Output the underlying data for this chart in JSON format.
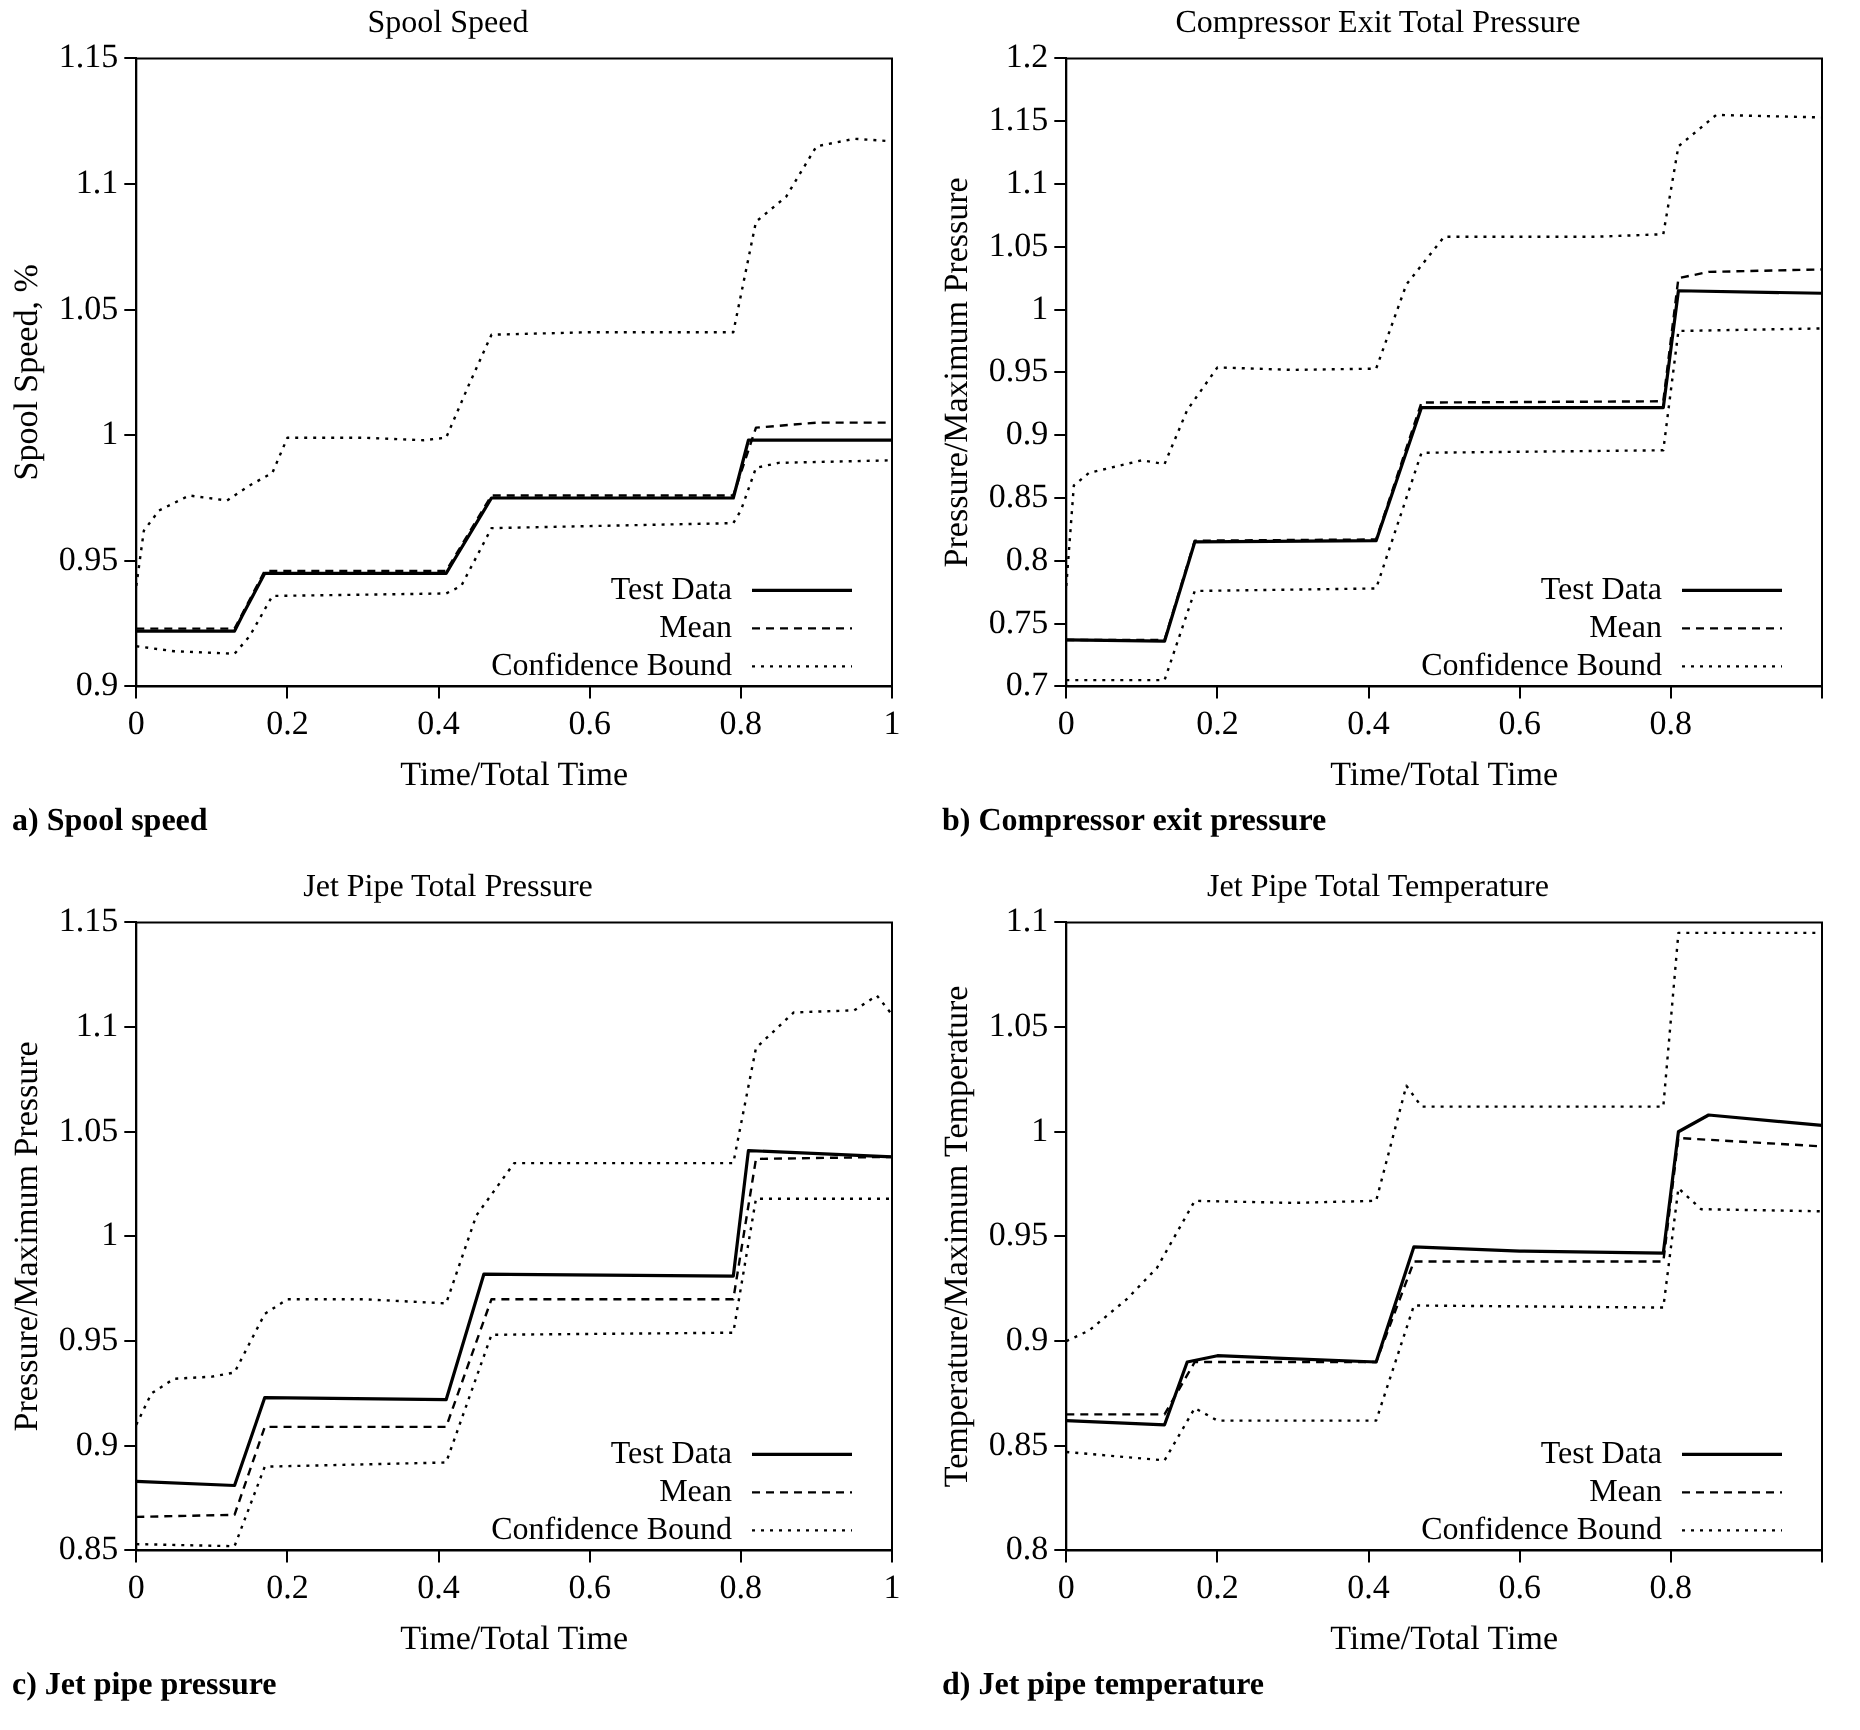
{
  "chart_data": [
    {
      "type": "line",
      "title": "Spool Speed",
      "xlabel": "Time/Total Time",
      "ylabel": "Spool Speed, %",
      "xlim": [
        0,
        1
      ],
      "xticks": [
        0,
        0.2,
        0.4,
        0.6,
        0.8,
        1
      ],
      "ylim": [
        0.9,
        1.15
      ],
      "yticks": [
        0.9,
        0.95,
        1,
        1.05,
        1.1,
        1.15
      ],
      "legend": "bottom right",
      "annotations": [
        "a) Spool speed"
      ],
      "series": [
        {
          "name": "Test Data",
          "color": "#000000",
          "line_style": "solid",
          "x": [
            0,
            0.13,
            0.14,
            0.17,
            0.41,
            0.42,
            0.47,
            0.79,
            0.81,
            1
          ],
          "values": [
            0.922,
            0.922,
            0.928,
            0.945,
            0.945,
            0.95,
            0.975,
            0.975,
            0.998,
            0.998
          ]
        },
        {
          "name": "Mean",
          "color": "#000000",
          "line_style": "dashed",
          "x": [
            0,
            0.13,
            0.17,
            0.41,
            0.47,
            0.79,
            0.82,
            0.9,
            1
          ],
          "values": [
            0.923,
            0.923,
            0.946,
            0.946,
            0.976,
            0.976,
            1.003,
            1.005,
            1.005
          ]
        },
        {
          "name": "Confidence Bound",
          "color": "#000000",
          "line_style": "dotted",
          "x": [
            0,
            0.01,
            0.03,
            0.07,
            0.12,
            0.15,
            0.18,
            0.2,
            0.3,
            0.38,
            0.41,
            0.44,
            0.47,
            0.6,
            0.79,
            0.82,
            0.86,
            0.9,
            0.95,
            1
          ],
          "values": [
            0.94,
            0.962,
            0.97,
            0.976,
            0.974,
            0.98,
            0.985,
            0.999,
            0.999,
            0.998,
            0.999,
            1.02,
            1.04,
            1.041,
            1.041,
            1.085,
            1.095,
            1.115,
            1.118,
            1.117
          ]
        },
        {
          "color": "#000000",
          "line_style": "dotted",
          "x": [
            0,
            0.05,
            0.13,
            0.15,
            0.18,
            0.41,
            0.43,
            0.47,
            0.79,
            0.8,
            0.82,
            0.85,
            1
          ],
          "values": [
            0.916,
            0.914,
            0.913,
            0.92,
            0.936,
            0.937,
            0.94,
            0.963,
            0.965,
            0.97,
            0.987,
            0.989,
            0.99
          ]
        }
      ]
    },
    {
      "type": "line",
      "title": "Compressor Exit Total Pressure",
      "xlabel": "Time/Total Time",
      "ylabel": "Pressure/Maximum Pressure",
      "xlim": [
        0,
        1
      ],
      "xticks": [
        0,
        0.2,
        0.4,
        0.6,
        0.8,
        {
          "value": 1,
          "label": null
        }
      ],
      "ylim": [
        0.7,
        1.2
      ],
      "yticks": [
        0.7,
        0.75,
        0.8,
        0.85,
        0.9,
        0.95,
        1,
        1.05,
        1.1,
        1.15,
        1.2
      ],
      "legend": "bottom right",
      "annotations": [
        "b) Compressor exit pressure"
      ],
      "series": [
        {
          "name": "Test Data",
          "color": "#000000",
          "line_style": "solid",
          "x": [
            0,
            0.13,
            0.17,
            0.41,
            0.47,
            0.79,
            0.81,
            1
          ],
          "values": [
            0.737,
            0.736,
            0.815,
            0.816,
            0.922,
            0.922,
            1.015,
            1.013
          ]
        },
        {
          "name": "Mean",
          "color": "#000000",
          "line_style": "dashed",
          "x": [
            0,
            0.13,
            0.17,
            0.41,
            0.47,
            0.79,
            0.81,
            0.85,
            1
          ],
          "values": [
            0.737,
            0.737,
            0.816,
            0.817,
            0.926,
            0.927,
            1.025,
            1.03,
            1.032
          ]
        },
        {
          "name": "Confidence Bound",
          "color": "#000000",
          "line_style": "dotted",
          "x": [
            0,
            0.01,
            0.03,
            0.1,
            0.13,
            0.16,
            0.2,
            0.3,
            0.41,
            0.45,
            0.5,
            0.7,
            0.79,
            0.81,
            0.86,
            1
          ],
          "values": [
            0.78,
            0.86,
            0.87,
            0.88,
            0.877,
            0.92,
            0.954,
            0.952,
            0.953,
            1.02,
            1.058,
            1.058,
            1.06,
            1.13,
            1.155,
            1.153
          ]
        },
        {
          "color": "#000000",
          "line_style": "dotted",
          "x": [
            0,
            0.13,
            0.17,
            0.41,
            0.47,
            0.79,
            0.81,
            1
          ],
          "values": [
            0.705,
            0.705,
            0.776,
            0.778,
            0.886,
            0.888,
            0.983,
            0.985
          ]
        }
      ]
    },
    {
      "type": "line",
      "title": "Jet Pipe Total Pressure",
      "xlabel": "Time/Total Time",
      "ylabel": "Pressure/Maximum Pressure",
      "xlim": [
        0,
        1
      ],
      "xticks": [
        0,
        0.2,
        0.4,
        0.6,
        0.8,
        1
      ],
      "ylim": [
        0.85,
        1.15
      ],
      "yticks": [
        0.85,
        0.9,
        0.95,
        1,
        1.05,
        1.1,
        1.15
      ],
      "legend": "bottom right",
      "annotations": [
        "c) Jet pipe pressure"
      ],
      "series": [
        {
          "name": "Test Data",
          "color": "#000000",
          "line_style": "solid",
          "x": [
            0,
            0.13,
            0.17,
            0.41,
            0.46,
            0.79,
            0.81,
            1
          ],
          "values": [
            0.883,
            0.881,
            0.923,
            0.922,
            0.982,
            0.981,
            1.041,
            1.038
          ]
        },
        {
          "name": "Mean",
          "color": "#000000",
          "line_style": "dashed",
          "x": [
            0,
            0.13,
            0.17,
            0.41,
            0.47,
            0.79,
            0.82,
            1
          ],
          "values": [
            0.866,
            0.867,
            0.909,
            0.909,
            0.97,
            0.97,
            1.037,
            1.038
          ]
        },
        {
          "name": "Confidence Bound",
          "color": "#000000",
          "line_style": "dotted",
          "x": [
            0,
            0.02,
            0.05,
            0.1,
            0.13,
            0.17,
            0.2,
            0.3,
            0.41,
            0.45,
            0.5,
            0.7,
            0.79,
            0.82,
            0.87,
            0.95,
            0.98,
            1
          ],
          "values": [
            0.91,
            0.925,
            0.932,
            0.933,
            0.935,
            0.963,
            0.97,
            0.97,
            0.968,
            1.01,
            1.035,
            1.035,
            1.035,
            1.09,
            1.107,
            1.108,
            1.115,
            1.106
          ]
        },
        {
          "color": "#000000",
          "line_style": "dotted",
          "x": [
            0,
            0.13,
            0.17,
            0.41,
            0.47,
            0.79,
            0.82,
            1
          ],
          "values": [
            0.853,
            0.852,
            0.89,
            0.892,
            0.953,
            0.954,
            1.018,
            1.018
          ]
        }
      ]
    },
    {
      "type": "line",
      "title": "Jet Pipe Total Temperature",
      "xlabel": "Time/Total Time",
      "ylabel": "Temperature/Maximum Temperature",
      "xlim": [
        0,
        1
      ],
      "xticks": [
        0,
        0.2,
        0.4,
        0.6,
        0.8,
        {
          "value": 1,
          "label": null
        }
      ],
      "ylim": [
        0.8,
        1.1
      ],
      "yticks": [
        0.8,
        0.85,
        0.9,
        0.95,
        1,
        1.05,
        1.1
      ],
      "legend": "bottom right",
      "annotations": [
        "d) Jet pipe temperature"
      ],
      "series": [
        {
          "name": "Test Data",
          "color": "#000000",
          "line_style": "solid",
          "x": [
            0,
            0.13,
            0.16,
            0.2,
            0.41,
            0.46,
            0.6,
            0.79,
            0.81,
            0.85,
            1
          ],
          "values": [
            0.862,
            0.86,
            0.89,
            0.893,
            0.89,
            0.945,
            0.943,
            0.942,
            1,
            1.008,
            1.003
          ]
        },
        {
          "name": "Mean",
          "color": "#000000",
          "line_style": "dashed",
          "x": [
            0,
            0.13,
            0.17,
            0.41,
            0.46,
            0.79,
            0.81,
            1
          ],
          "values": [
            0.865,
            0.865,
            0.89,
            0.89,
            0.938,
            0.938,
            0.997,
            0.993
          ]
        },
        {
          "name": "Confidence Bound",
          "color": "#000000",
          "line_style": "dotted",
          "x": [
            0,
            0.03,
            0.08,
            0.12,
            0.17,
            0.3,
            0.41,
            0.45,
            0.47,
            0.79,
            0.81,
            1
          ],
          "values": [
            0.9,
            0.905,
            0.92,
            0.935,
            0.967,
            0.966,
            0.967,
            1.022,
            1.012,
            1.012,
            1.095,
            1.095
          ]
        },
        {
          "color": "#000000",
          "line_style": "dotted",
          "x": [
            0,
            0.13,
            0.17,
            0.2,
            0.41,
            0.46,
            0.79,
            0.81,
            0.84,
            1
          ],
          "values": [
            0.847,
            0.843,
            0.868,
            0.862,
            0.862,
            0.917,
            0.916,
            0.973,
            0.963,
            0.962
          ]
        }
      ]
    }
  ]
}
